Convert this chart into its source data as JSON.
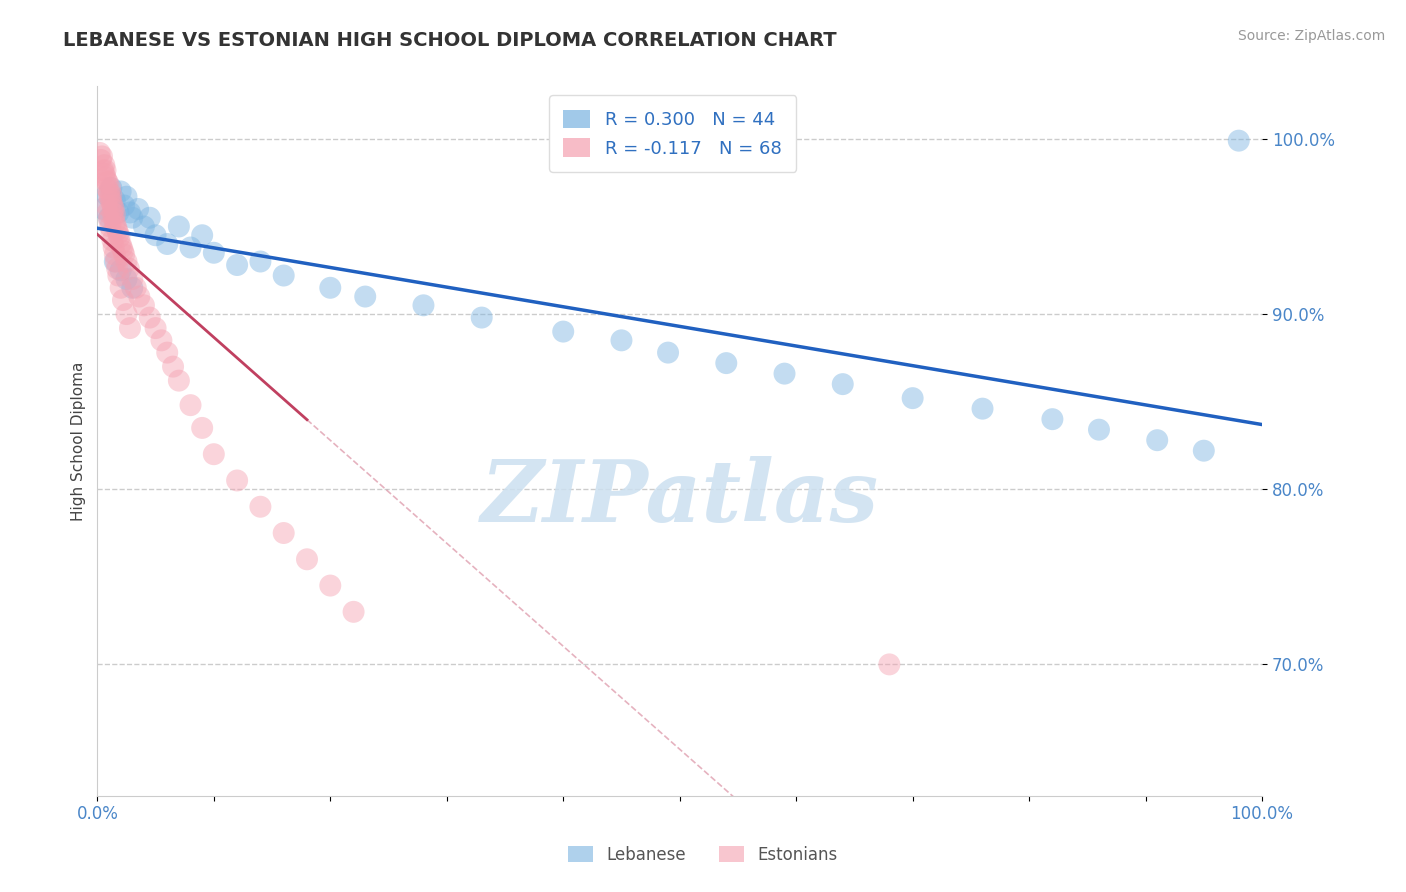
{
  "title": "LEBANESE VS ESTONIAN HIGH SCHOOL DIPLOMA CORRELATION CHART",
  "source": "Source: ZipAtlas.com",
  "ylabel": "High School Diploma",
  "xlim": [
    0.0,
    1.0
  ],
  "ylim": [
    0.625,
    1.03
  ],
  "yticks": [
    0.7,
    0.8,
    0.9,
    1.0
  ],
  "ytick_labels": [
    "70.0%",
    "80.0%",
    "90.0%",
    "100.0%"
  ],
  "xtick_labels": [
    "0.0%",
    "",
    "",
    "",
    "",
    "",
    "",
    "",
    "",
    "",
    "100.0%"
  ],
  "blue_R": 0.3,
  "blue_N": 44,
  "pink_R": -0.117,
  "pink_N": 68,
  "blue_color": "#7ab3e0",
  "pink_color": "#f4a0b0",
  "trend_blue_color": "#2060c0",
  "trend_pink_color": "#c04060",
  "blue_points_x": [
    0.005,
    0.008,
    0.01,
    0.012,
    0.015,
    0.018,
    0.02,
    0.023,
    0.025,
    0.028,
    0.03,
    0.035,
    0.04,
    0.045,
    0.05,
    0.06,
    0.07,
    0.08,
    0.09,
    0.1,
    0.12,
    0.14,
    0.16,
    0.2,
    0.23,
    0.28,
    0.33,
    0.4,
    0.45,
    0.49,
    0.54,
    0.59,
    0.64,
    0.7,
    0.76,
    0.82,
    0.86,
    0.91,
    0.95,
    0.98,
    0.015,
    0.02,
    0.025,
    0.03
  ],
  "blue_points_y": [
    0.96,
    0.968,
    0.955,
    0.972,
    0.965,
    0.958,
    0.97,
    0.962,
    0.967,
    0.958,
    0.955,
    0.96,
    0.95,
    0.955,
    0.945,
    0.94,
    0.95,
    0.938,
    0.945,
    0.935,
    0.928,
    0.93,
    0.922,
    0.915,
    0.91,
    0.905,
    0.898,
    0.89,
    0.885,
    0.878,
    0.872,
    0.866,
    0.86,
    0.852,
    0.846,
    0.84,
    0.834,
    0.828,
    0.822,
    0.999,
    0.93,
    0.925,
    0.92,
    0.915
  ],
  "pink_points_x": [
    0.002,
    0.003,
    0.004,
    0.005,
    0.006,
    0.006,
    0.007,
    0.007,
    0.008,
    0.008,
    0.009,
    0.01,
    0.01,
    0.011,
    0.011,
    0.012,
    0.012,
    0.013,
    0.013,
    0.014,
    0.014,
    0.015,
    0.015,
    0.016,
    0.017,
    0.018,
    0.019,
    0.02,
    0.021,
    0.022,
    0.023,
    0.025,
    0.027,
    0.03,
    0.033,
    0.036,
    0.04,
    0.045,
    0.05,
    0.055,
    0.06,
    0.065,
    0.07,
    0.08,
    0.09,
    0.1,
    0.12,
    0.14,
    0.16,
    0.18,
    0.2,
    0.22,
    0.008,
    0.009,
    0.01,
    0.011,
    0.012,
    0.013,
    0.014,
    0.015,
    0.016,
    0.017,
    0.018,
    0.02,
    0.022,
    0.025,
    0.028,
    0.68
  ],
  "pink_points_y": [
    0.992,
    0.988,
    0.99,
    0.982,
    0.985,
    0.98,
    0.978,
    0.982,
    0.976,
    0.972,
    0.975,
    0.97,
    0.968,
    0.972,
    0.966,
    0.964,
    0.968,
    0.962,
    0.958,
    0.96,
    0.955,
    0.957,
    0.952,
    0.95,
    0.948,
    0.946,
    0.944,
    0.94,
    0.938,
    0.936,
    0.934,
    0.93,
    0.926,
    0.92,
    0.915,
    0.91,
    0.905,
    0.898,
    0.892,
    0.885,
    0.878,
    0.87,
    0.862,
    0.848,
    0.835,
    0.82,
    0.805,
    0.79,
    0.775,
    0.76,
    0.745,
    0.73,
    0.962,
    0.958,
    0.954,
    0.95,
    0.946,
    0.942,
    0.938,
    0.934,
    0.93,
    0.926,
    0.922,
    0.915,
    0.908,
    0.9,
    0.892,
    0.7
  ],
  "watermark_text": "ZIPatlas",
  "legend_labels_bottom": [
    "Lebanese",
    "Estonians"
  ]
}
